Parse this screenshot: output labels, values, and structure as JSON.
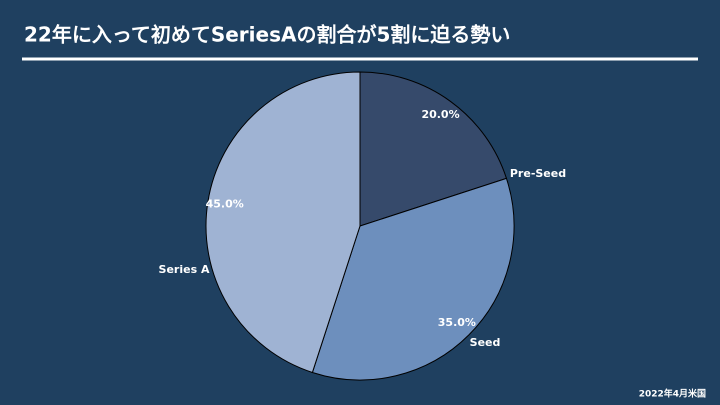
{
  "chart_data": {
    "type": "pie",
    "title": "22年に入って初めてSeriesAの割合が5割に迫る勢い",
    "categories": [
      "Pre-Seed",
      "Seed",
      "Series A"
    ],
    "values": [
      20,
      35,
      45
    ],
    "value_labels": [
      "20.0%",
      "35.0%",
      "45.0%"
    ],
    "colors": [
      "#364a6b",
      "#6d8fbd",
      "#9fb3d3"
    ],
    "note": "2022年4月米国"
  }
}
